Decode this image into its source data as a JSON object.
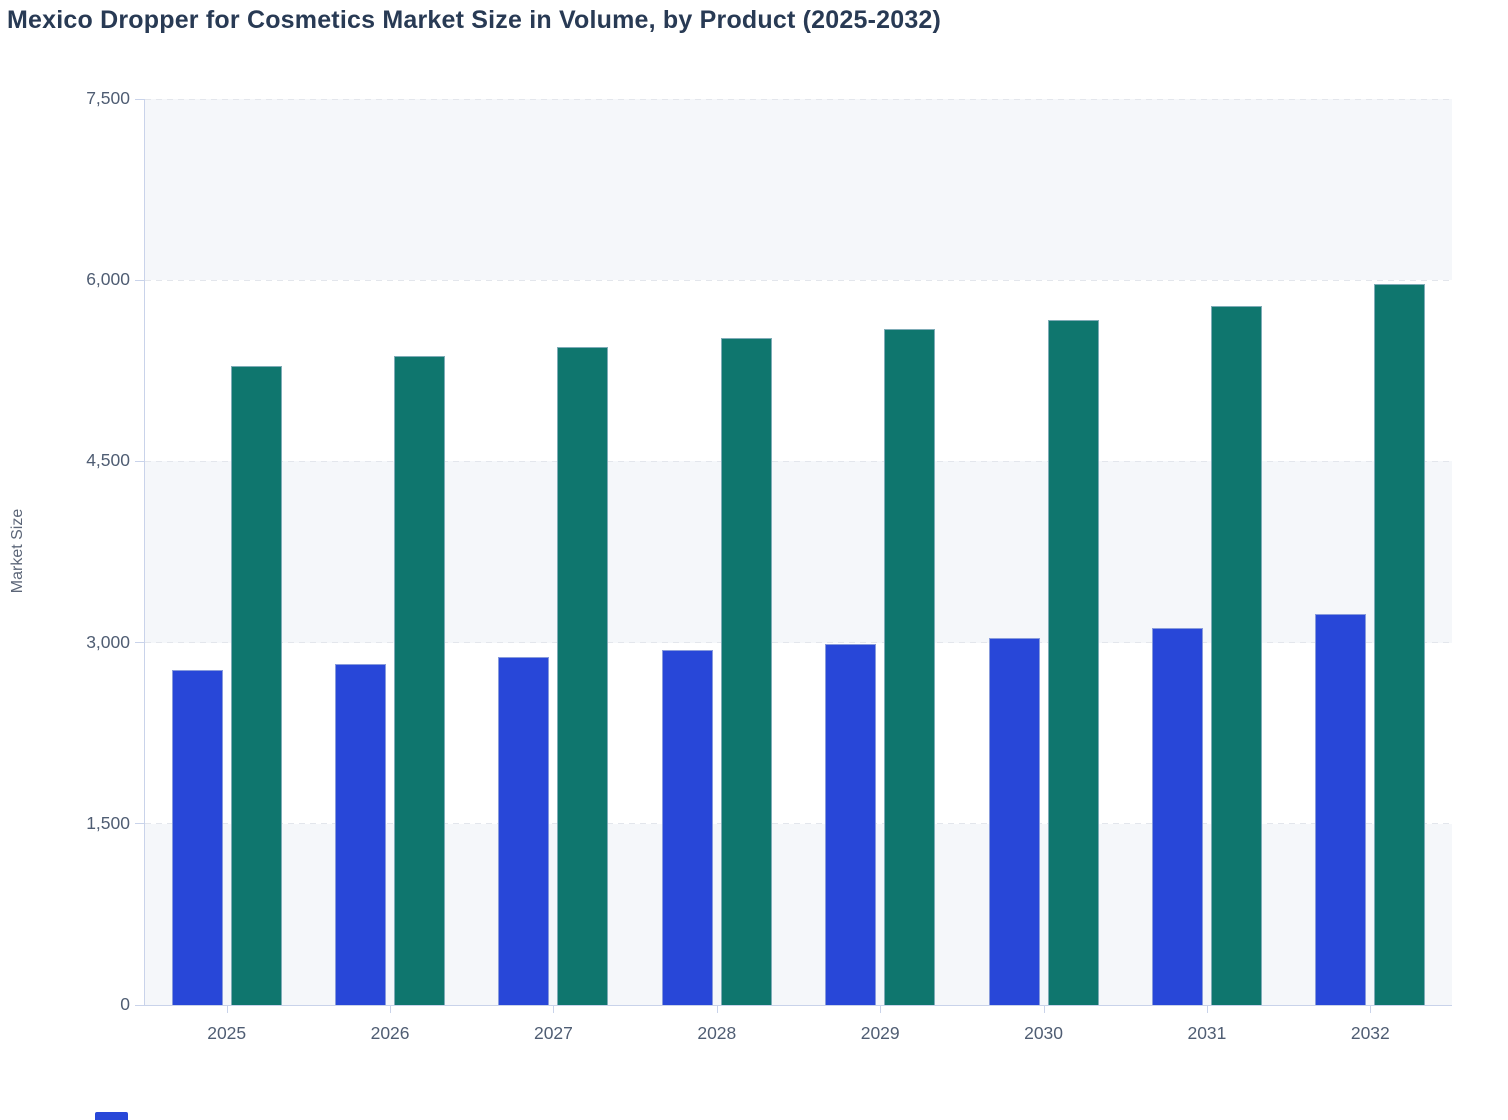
{
  "title": "Mexico Dropper for Cosmetics Market Size in Volume, by Product (2025-2032)",
  "colors": {
    "series1": "#2847d8",
    "series2": "#0f766e",
    "plot_band": "#f5f7fa",
    "gridline": "#e3e6ec",
    "axis_line": "#c9d3ea",
    "title_text": "#283a54",
    "tick_text": "#4f5d73",
    "axis_title_text": "#5c6678"
  },
  "legend": {
    "partial_swatch_color": "#2847d8",
    "note": "legend cut off at bottom edge; only one blue swatch partially visible"
  },
  "chart_data": {
    "type": "bar",
    "title": "Mexico Dropper for Cosmetics Market Size in Volume, by Product (2025-2032)",
    "categories": [
      "2025",
      "2026",
      "2027",
      "2028",
      "2029",
      "2030",
      "2031",
      "2032"
    ],
    "series": [
      {
        "id": "series-1",
        "color": "#2847d8",
        "values": [
          2770,
          2825,
          2880,
          2940,
          2990,
          3040,
          3120,
          3240
        ]
      },
      {
        "id": "series-2",
        "color": "#0f766e",
        "values": [
          5290,
          5375,
          5450,
          5525,
          5595,
          5670,
          5790,
          5970
        ]
      }
    ],
    "xlabel": "",
    "ylabel": "Market Size",
    "ylim": [
      0,
      7500
    ],
    "yticks": [
      0,
      1500,
      3000,
      4500,
      6000,
      7500
    ],
    "ytick_labels": [
      "0",
      "1,500",
      "3,000",
      "4,500",
      "6,000",
      "7,500"
    ],
    "grid": "horizontal dashed gridlines at each ytick; alternating light background bands",
    "legend_position": "bottom (cut off by viewport)"
  }
}
